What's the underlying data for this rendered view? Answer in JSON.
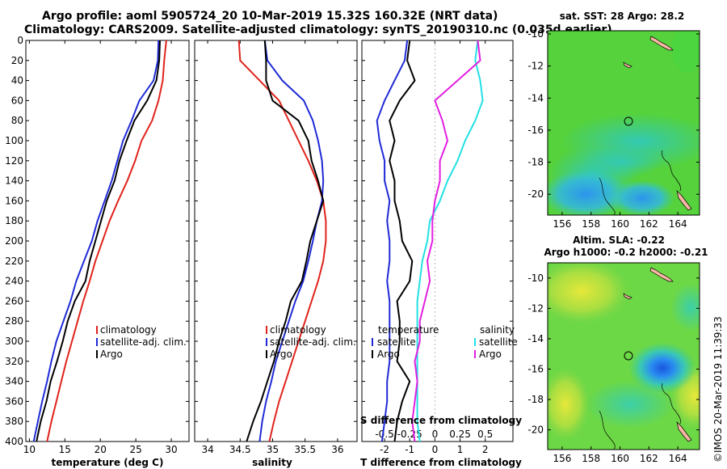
{
  "header": {
    "line1": "Argo profile: aoml 5905724_20 10-Mar-2019 15.32S 160.32E (NRT data)",
    "line2": "Climatology: CARS2009. Satellite-adjusted climatology: synTS_20190310.nc (0.035d earlier)"
  },
  "watermark": "©IMOS 20-Mar-2019 11:39:33",
  "colors": {
    "climatology": "#e0231b",
    "satellite": "#1f2ad6",
    "argo": "#000000",
    "sat_diff_t": "#1f2ad6",
    "sat_diff_s": "#22e0e4",
    "argo_diff_s": "#e11fe0"
  },
  "chart_data": [
    {
      "type": "line",
      "name": "temperature",
      "xlabel": "temperature (deg C)",
      "xlim": [
        9.5,
        32.5
      ],
      "ylim": [
        400,
        0
      ],
      "xticks": [
        10,
        15,
        20,
        25,
        30
      ],
      "yticks": [
        0,
        20,
        40,
        60,
        80,
        100,
        120,
        140,
        160,
        180,
        200,
        220,
        240,
        260,
        280,
        300,
        320,
        340,
        360,
        380,
        400
      ],
      "legend": [
        "climatology",
        "satellite-adj. clim.",
        "Argo"
      ],
      "series": [
        {
          "name": "climatology",
          "color": "#e0231b",
          "points": [
            [
              29.3,
              0
            ],
            [
              29.0,
              20
            ],
            [
              28.8,
              40
            ],
            [
              28.2,
              60
            ],
            [
              27.3,
              80
            ],
            [
              25.8,
              100
            ],
            [
              24.9,
              120
            ],
            [
              23.8,
              140
            ],
            [
              22.5,
              160
            ],
            [
              21.3,
              180
            ],
            [
              20.3,
              200
            ],
            [
              19.3,
              220
            ],
            [
              18.5,
              240
            ],
            [
              17.6,
              260
            ],
            [
              16.8,
              280
            ],
            [
              16.0,
              300
            ],
            [
              15.2,
              320
            ],
            [
              14.5,
              340
            ],
            [
              13.8,
              360
            ],
            [
              13.1,
              380
            ],
            [
              12.5,
              400
            ]
          ]
        },
        {
          "name": "satellite-adj. clim.",
          "color": "#1f2ad6",
          "points": [
            [
              28.2,
              0
            ],
            [
              28.1,
              20
            ],
            [
              27.5,
              40
            ],
            [
              25.5,
              60
            ],
            [
              24.4,
              80
            ],
            [
              23.2,
              100
            ],
            [
              22.4,
              120
            ],
            [
              21.6,
              140
            ],
            [
              20.6,
              160
            ],
            [
              19.6,
              180
            ],
            [
              18.8,
              200
            ],
            [
              17.7,
              220
            ],
            [
              16.6,
              240
            ],
            [
              15.8,
              260
            ],
            [
              14.8,
              280
            ],
            [
              13.8,
              300
            ],
            [
              13.1,
              320
            ],
            [
              12.5,
              340
            ],
            [
              11.8,
              360
            ],
            [
              11.2,
              380
            ],
            [
              10.6,
              400
            ]
          ]
        },
        {
          "name": "Argo",
          "color": "#000000",
          "points": [
            [
              28.4,
              0
            ],
            [
              28.3,
              20
            ],
            [
              27.9,
              40
            ],
            [
              26.6,
              60
            ],
            [
              24.8,
              80
            ],
            [
              23.7,
              100
            ],
            [
              22.7,
              120
            ],
            [
              22.0,
              140
            ],
            [
              20.9,
              160
            ],
            [
              20.1,
              180
            ],
            [
              19.3,
              200
            ],
            [
              18.5,
              220
            ],
            [
              17.9,
              240
            ],
            [
              16.4,
              260
            ],
            [
              15.4,
              280
            ],
            [
              14.7,
              300
            ],
            [
              13.9,
              320
            ],
            [
              13.0,
              340
            ],
            [
              12.4,
              360
            ],
            [
              11.6,
              380
            ],
            [
              11.0,
              400
            ]
          ]
        }
      ]
    },
    {
      "type": "line",
      "name": "salinity",
      "xlabel": "salinity",
      "xlim": [
        33.8,
        36.3
      ],
      "ylim": [
        400,
        0
      ],
      "xticks": [
        34,
        34.5,
        35,
        35.5,
        36
      ],
      "legend": [
        "climatology",
        "satellite-adj. clim.",
        "Argo"
      ],
      "series": [
        {
          "name": "climatology",
          "color": "#e0231b",
          "points": [
            [
              34.48,
              0
            ],
            [
              34.5,
              20
            ],
            [
              34.8,
              40
            ],
            [
              35.1,
              60
            ],
            [
              35.25,
              80
            ],
            [
              35.4,
              100
            ],
            [
              35.55,
              120
            ],
            [
              35.68,
              140
            ],
            [
              35.78,
              160
            ],
            [
              35.82,
              180
            ],
            [
              35.82,
              200
            ],
            [
              35.78,
              220
            ],
            [
              35.7,
              240
            ],
            [
              35.6,
              260
            ],
            [
              35.5,
              280
            ],
            [
              35.4,
              300
            ],
            [
              35.3,
              320
            ],
            [
              35.2,
              340
            ],
            [
              35.1,
              360
            ],
            [
              35.02,
              380
            ],
            [
              34.95,
              400
            ]
          ]
        },
        {
          "name": "satellite-adj. clim.",
          "color": "#1f2ad6",
          "points": [
            [
              34.88,
              0
            ],
            [
              34.92,
              20
            ],
            [
              35.15,
              40
            ],
            [
              35.48,
              60
            ],
            [
              35.62,
              80
            ],
            [
              35.7,
              100
            ],
            [
              35.76,
              120
            ],
            [
              35.78,
              140
            ],
            [
              35.76,
              160
            ],
            [
              35.68,
              180
            ],
            [
              35.62,
              200
            ],
            [
              35.55,
              220
            ],
            [
              35.47,
              240
            ],
            [
              35.35,
              260
            ],
            [
              35.25,
              280
            ],
            [
              35.15,
              300
            ],
            [
              35.05,
              320
            ],
            [
              34.98,
              340
            ],
            [
              34.9,
              360
            ],
            [
              34.84,
              380
            ],
            [
              34.8,
              400
            ]
          ]
        },
        {
          "name": "Argo",
          "color": "#000000",
          "points": [
            [
              34.88,
              0
            ],
            [
              34.9,
              20
            ],
            [
              34.9,
              40
            ],
            [
              35.0,
              60
            ],
            [
              35.4,
              80
            ],
            [
              35.55,
              100
            ],
            [
              35.6,
              120
            ],
            [
              35.7,
              140
            ],
            [
              35.78,
              160
            ],
            [
              35.68,
              180
            ],
            [
              35.58,
              200
            ],
            [
              35.52,
              220
            ],
            [
              35.45,
              240
            ],
            [
              35.28,
              260
            ],
            [
              35.2,
              280
            ],
            [
              35.1,
              300
            ],
            [
              35.02,
              320
            ],
            [
              34.92,
              340
            ],
            [
              34.82,
              360
            ],
            [
              34.7,
              380
            ],
            [
              34.6,
              400
            ]
          ]
        }
      ]
    },
    {
      "type": "line",
      "name": "differences",
      "xlabel": "T difference from climatology",
      "xlabel_top": "S difference from climatology",
      "xlim": [
        -2.9,
        3.1
      ],
      "ylim": [
        400,
        0
      ],
      "xticks": [
        -2,
        -1,
        0,
        1,
        2
      ],
      "xticks_top_labels": [
        "-0.5",
        "-0.25",
        "0",
        "0.25",
        "0.5"
      ],
      "legend_left_title": "temperature",
      "legend_right_title": "salinity",
      "legend_left": [
        "satellite",
        "Argo"
      ],
      "legend_right": [
        "satellite",
        "Argo"
      ],
      "series": [
        {
          "name": "T satellite",
          "color": "#1f2ad6",
          "points": [
            [
              -1.1,
              0
            ],
            [
              -1.2,
              20
            ],
            [
              -1.6,
              40
            ],
            [
              -2.0,
              60
            ],
            [
              -2.3,
              80
            ],
            [
              -2.2,
              100
            ],
            [
              -2.0,
              120
            ],
            [
              -2.0,
              140
            ],
            [
              -1.8,
              160
            ],
            [
              -1.9,
              180
            ],
            [
              -1.8,
              200
            ],
            [
              -1.8,
              220
            ],
            [
              -1.9,
              240
            ],
            [
              -1.8,
              260
            ],
            [
              -1.8,
              280
            ],
            [
              -1.8,
              300
            ],
            [
              -1.8,
              320
            ],
            [
              -1.9,
              340
            ],
            [
              -1.9,
              360
            ],
            [
              -2.0,
              380
            ],
            [
              -2.1,
              400
            ]
          ]
        },
        {
          "name": "T Argo",
          "color": "#000000",
          "points": [
            [
              -1.0,
              0
            ],
            [
              -1.1,
              20
            ],
            [
              -0.8,
              40
            ],
            [
              -1.4,
              60
            ],
            [
              -1.8,
              80
            ],
            [
              -1.6,
              100
            ],
            [
              -1.8,
              120
            ],
            [
              -1.6,
              140
            ],
            [
              -1.6,
              160
            ],
            [
              -1.4,
              180
            ],
            [
              -1.3,
              200
            ],
            [
              -0.9,
              220
            ],
            [
              -1.0,
              240
            ],
            [
              -1.5,
              260
            ],
            [
              -1.4,
              280
            ],
            [
              -1.4,
              300
            ],
            [
              -1.5,
              320
            ],
            [
              -1.0,
              340
            ],
            [
              -1.3,
              360
            ],
            [
              -1.5,
              380
            ],
            [
              -1.6,
              400
            ]
          ]
        },
        {
          "name": "S satellite",
          "color": "#22e0e4",
          "points": [
            [
              1.7,
              0
            ],
            [
              1.6,
              20
            ],
            [
              1.8,
              40
            ],
            [
              1.9,
              60
            ],
            [
              1.6,
              80
            ],
            [
              1.2,
              100
            ],
            [
              0.9,
              120
            ],
            [
              0.5,
              140
            ],
            [
              0.2,
              160
            ],
            [
              -0.2,
              180
            ],
            [
              -0.3,
              200
            ],
            [
              -0.5,
              220
            ],
            [
              -0.6,
              240
            ],
            [
              -0.7,
              260
            ],
            [
              -0.7,
              280
            ],
            [
              -0.7,
              300
            ],
            [
              -0.7,
              320
            ],
            [
              -0.7,
              340
            ],
            [
              -0.7,
              360
            ],
            [
              -0.7,
              380
            ],
            [
              -0.6,
              400
            ]
          ]
        },
        {
          "name": "S Argo",
          "color": "#e11fe0",
          "points": [
            [
              1.7,
              0
            ],
            [
              1.8,
              20
            ],
            [
              0.9,
              40
            ],
            [
              0.0,
              60
            ],
            [
              0.3,
              80
            ],
            [
              0.5,
              100
            ],
            [
              0.2,
              120
            ],
            [
              0.2,
              140
            ],
            [
              0.0,
              160
            ],
            [
              -0.1,
              180
            ],
            [
              -0.1,
              200
            ],
            [
              -0.3,
              220
            ],
            [
              -0.2,
              240
            ],
            [
              -0.4,
              260
            ],
            [
              -0.6,
              280
            ],
            [
              -0.6,
              300
            ],
            [
              -0.8,
              320
            ],
            [
              -0.7,
              340
            ],
            [
              -0.8,
              360
            ],
            [
              -0.9,
              380
            ],
            [
              -0.8,
              400
            ]
          ]
        }
      ]
    },
    {
      "type": "heatmap",
      "name": "sst_map",
      "title": "sat. SST: 28 Argo: 28.2",
      "xticks": [
        156,
        158,
        160,
        162,
        164
      ],
      "yticks": [
        -10,
        -12,
        -14,
        -16,
        -18,
        -20
      ],
      "xlim": [
        155,
        165.5
      ],
      "ylim": [
        -21.3,
        -9.8
      ],
      "argo_position": [
        160.32,
        -15.32
      ]
    },
    {
      "type": "heatmap",
      "name": "sla_map",
      "title_line1": "Altim. SLA: -0.22",
      "title_line2": "Argo h1000: -0.2 h2000: -0.21",
      "xticks": [
        156,
        158,
        160,
        162,
        164
      ],
      "yticks": [
        -10,
        -12,
        -14,
        -16,
        -18,
        -20
      ],
      "xlim": [
        155,
        165.5
      ],
      "ylim": [
        -21.3,
        -9.0
      ],
      "argo_position": [
        160.32,
        -15.32
      ]
    }
  ]
}
